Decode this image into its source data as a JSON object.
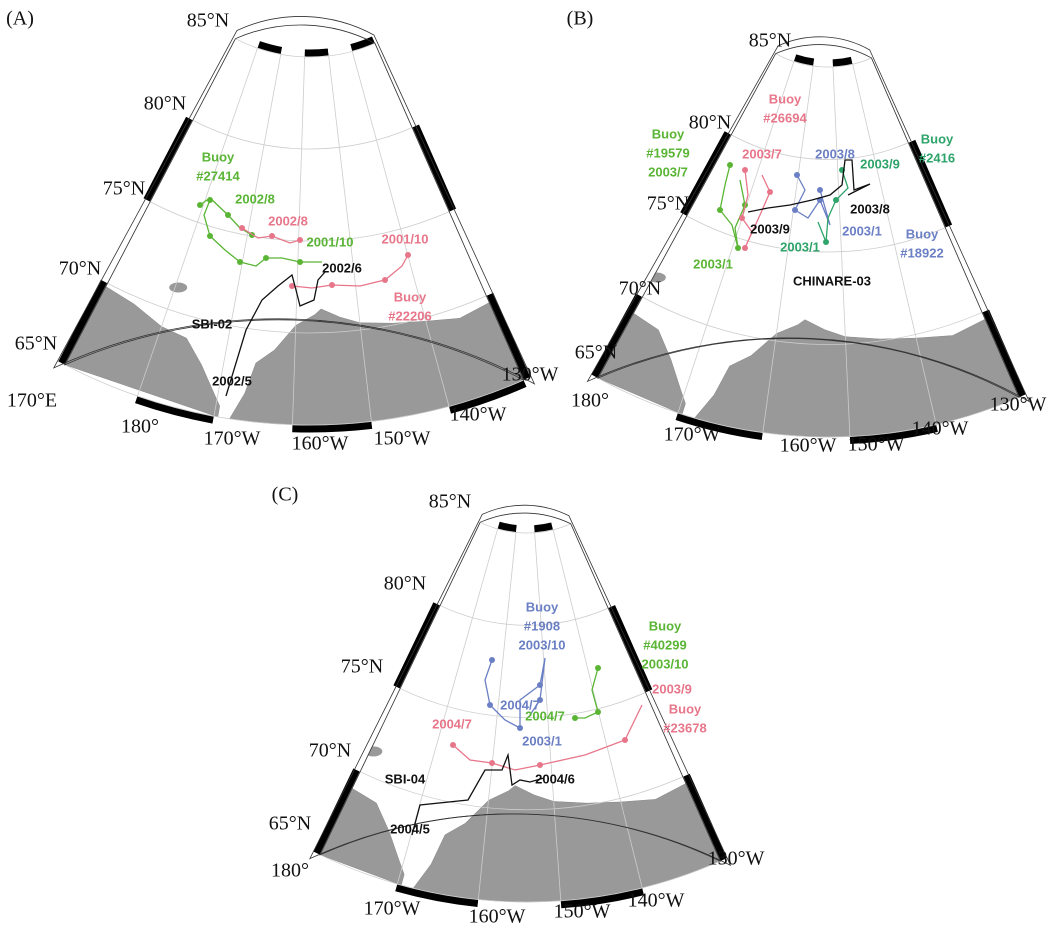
{
  "panels": [
    {
      "label": "(A)",
      "lat_labels": [
        "85°N",
        "80°N",
        "75°N",
        "70°N",
        "65°N"
      ],
      "lon_labels": [
        "170°E",
        "180°",
        "170°W",
        "160°W",
        "150°W",
        "140°W",
        "130°W"
      ],
      "annotations": [
        {
          "lines": [
            "Buoy",
            "#27414"
          ],
          "color": "#5ab535"
        },
        {
          "lines": [
            "2002/8"
          ],
          "color": "#5ab535"
        },
        {
          "lines": [
            "2002/8"
          ],
          "color": "#e8768a"
        },
        {
          "lines": [
            "2001/10"
          ],
          "color": "#5ab535"
        },
        {
          "lines": [
            "2001/10"
          ],
          "color": "#e8768a"
        },
        {
          "lines": [
            "2002/6"
          ],
          "color": "#111111"
        },
        {
          "lines": [
            "Buoy",
            "#22206"
          ],
          "color": "#e8768a"
        },
        {
          "lines": [
            "SBI-02"
          ],
          "color": "#111111"
        },
        {
          "lines": [
            "2002/5"
          ],
          "color": "#111111"
        }
      ]
    },
    {
      "label": "(B)",
      "lat_labels": [
        "85°N",
        "80°N",
        "75°N",
        "70°N",
        "65°N"
      ],
      "lon_labels": [
        "180°",
        "170°W",
        "160°W",
        "150°W",
        "140°W",
        "130°W"
      ],
      "annotations": [
        {
          "lines": [
            "Buoy",
            "#19579",
            "2003/7"
          ],
          "color": "#5ab535"
        },
        {
          "lines": [
            "Buoy",
            "#26694"
          ],
          "color": "#e8768a"
        },
        {
          "lines": [
            "2003/7"
          ],
          "color": "#e8768a"
        },
        {
          "lines": [
            "2003/8"
          ],
          "color": "#6b7fc4"
        },
        {
          "lines": [
            "2003/9"
          ],
          "color": "#2ea46a"
        },
        {
          "lines": [
            "Buoy",
            "#2416"
          ],
          "color": "#2ea46a"
        },
        {
          "lines": [
            "2003/8"
          ],
          "color": "#111111"
        },
        {
          "lines": [
            "2003/9"
          ],
          "color": "#111111"
        },
        {
          "lines": [
            "2003/1"
          ],
          "color": "#6b7fc4"
        },
        {
          "lines": [
            "Buoy",
            "#18922"
          ],
          "color": "#6b7fc4"
        },
        {
          "lines": [
            "2003/1"
          ],
          "color": "#2ea46a"
        },
        {
          "lines": [
            "2003/1"
          ],
          "color": "#5ab535"
        },
        {
          "lines": [
            "CHINARE-03"
          ],
          "color": "#111111"
        }
      ]
    },
    {
      "label": "(C)",
      "lat_labels": [
        "85°N",
        "80°N",
        "75°N",
        "70°N",
        "65°N"
      ],
      "lon_labels": [
        "180°",
        "170°W",
        "160°W",
        "150°W",
        "140°W",
        "130°W"
      ],
      "annotations": [
        {
          "lines": [
            "Buoy",
            "#1908",
            "2003/10"
          ],
          "color": "#6b7fc4"
        },
        {
          "lines": [
            "Buoy",
            "#40299",
            "2003/10"
          ],
          "color": "#5ab535"
        },
        {
          "lines": [
            "2004/7"
          ],
          "color": "#6b7fc4"
        },
        {
          "lines": [
            "2004/7"
          ],
          "color": "#e8768a"
        },
        {
          "lines": [
            "2004/7"
          ],
          "color": "#5ab535"
        },
        {
          "lines": [
            "2003/9"
          ],
          "color": "#e8768a"
        },
        {
          "lines": [
            "Buoy",
            "#23678"
          ],
          "color": "#e8768a"
        },
        {
          "lines": [
            "2003/1"
          ],
          "color": "#6b7fc4"
        },
        {
          "lines": [
            "SBI-04"
          ],
          "color": "#111111"
        },
        {
          "lines": [
            "2004/6"
          ],
          "color": "#111111"
        },
        {
          "lines": [
            "2004/5"
          ],
          "color": "#111111"
        }
      ]
    }
  ]
}
